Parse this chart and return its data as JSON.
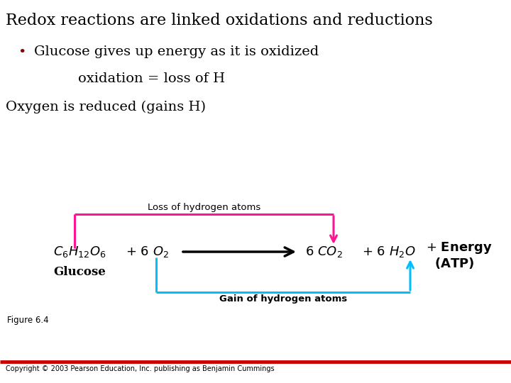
{
  "title": "Redox reactions are linked oxidations and reductions",
  "bullet1": "Glucose gives up energy as it is oxidized",
  "bullet2": "oxidation = loss of H",
  "bullet3": "Oxygen is reduced (gains H)",
  "bullet_color": "#8B0000",
  "title_color": "#000000",
  "bg_color": "#ffffff",
  "magenta_color": "#FF1493",
  "cyan_color": "#00BFFF",
  "black_color": "#000000",
  "red_line_color": "#CC0000",
  "figure_label": "Figure 6.4",
  "copyright": "Copyright © 2003 Pearson Education, Inc. publishing as Benjamin Cummings",
  "loss_label": "Loss of hydrogen atoms",
  "gain_label": "Gain of hydrogen atoms",
  "glucose_label": "Glucose"
}
